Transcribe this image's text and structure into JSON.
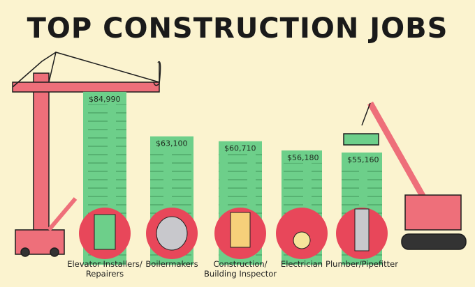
{
  "chart_data": {
    "type": "bar",
    "title": "TOP CONSTRUCTION JOBS",
    "categories": [
      "Elevator Installers/ Repairers",
      "Boilermakers",
      "Construction/ Building Inspector",
      "Electrician",
      "Plumber/Pipefitter"
    ],
    "values": [
      84990,
      63100,
      60710,
      56180,
      55160
    ],
    "value_labels": [
      "$84,990",
      "$63,100",
      "$60,710",
      "$56,180",
      "$55,160"
    ],
    "color": "#6dcf8a"
  }
}
